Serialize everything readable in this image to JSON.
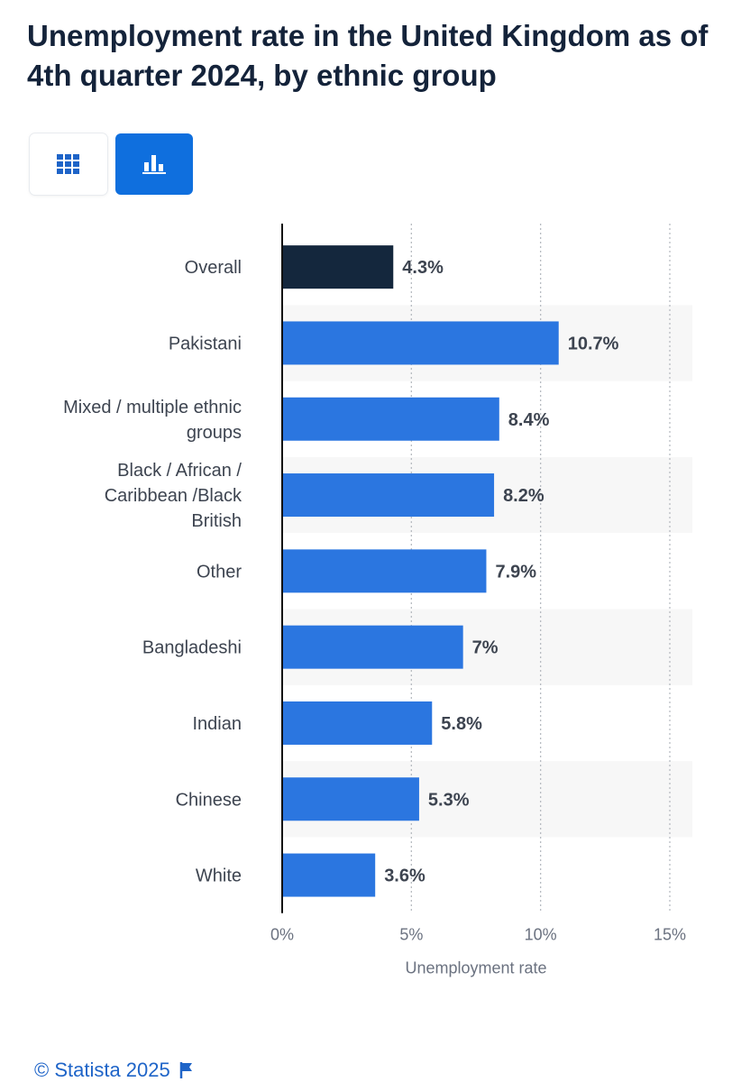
{
  "header": {
    "title": "Unemployment rate in the United Kingdom as of 4th quarter 2024, by ethnic group"
  },
  "view_toggle": {
    "options": [
      {
        "icon": "table-grid-icon",
        "selected": false
      },
      {
        "icon": "bar-chart-icon",
        "selected": true
      }
    ]
  },
  "colors": {
    "highlight": "#14273d",
    "bar": "#2b76e0",
    "accent": "#0f6fde",
    "band": "#f7f7f7"
  },
  "chart_data": {
    "type": "bar",
    "orientation": "horizontal",
    "categories": [
      "Overall",
      "Pakistani",
      "Mixed / multiple ethnic groups",
      "Black / African / Caribbean /Black British",
      "Other",
      "Bangladeshi",
      "Indian",
      "Chinese",
      "White"
    ],
    "category_lines": [
      [
        "Overall"
      ],
      [
        "Pakistani"
      ],
      [
        "Mixed / multiple ethnic",
        "groups"
      ],
      [
        "Black / African /",
        "Caribbean /Black",
        "British"
      ],
      [
        "Other"
      ],
      [
        "Bangladeshi"
      ],
      [
        "Indian"
      ],
      [
        "Chinese"
      ],
      [
        "White"
      ]
    ],
    "values": [
      4.3,
      10.7,
      8.4,
      8.2,
      7.9,
      7,
      5.8,
      5.3,
      3.6
    ],
    "value_labels": [
      "4.3%",
      "10.7%",
      "8.4%",
      "8.2%",
      "7.9%",
      "7%",
      "5.8%",
      "5.3%",
      "3.6%"
    ],
    "highlight_index": 0,
    "xlabel": "Unemployment rate",
    "ylabel": "",
    "xlim": [
      0,
      15
    ],
    "ticks": [
      0,
      5,
      10,
      15
    ],
    "tick_labels": [
      "0%",
      "5%",
      "10%",
      "15%"
    ],
    "grid": true
  },
  "footer": {
    "credit": "© Statista 2025"
  }
}
